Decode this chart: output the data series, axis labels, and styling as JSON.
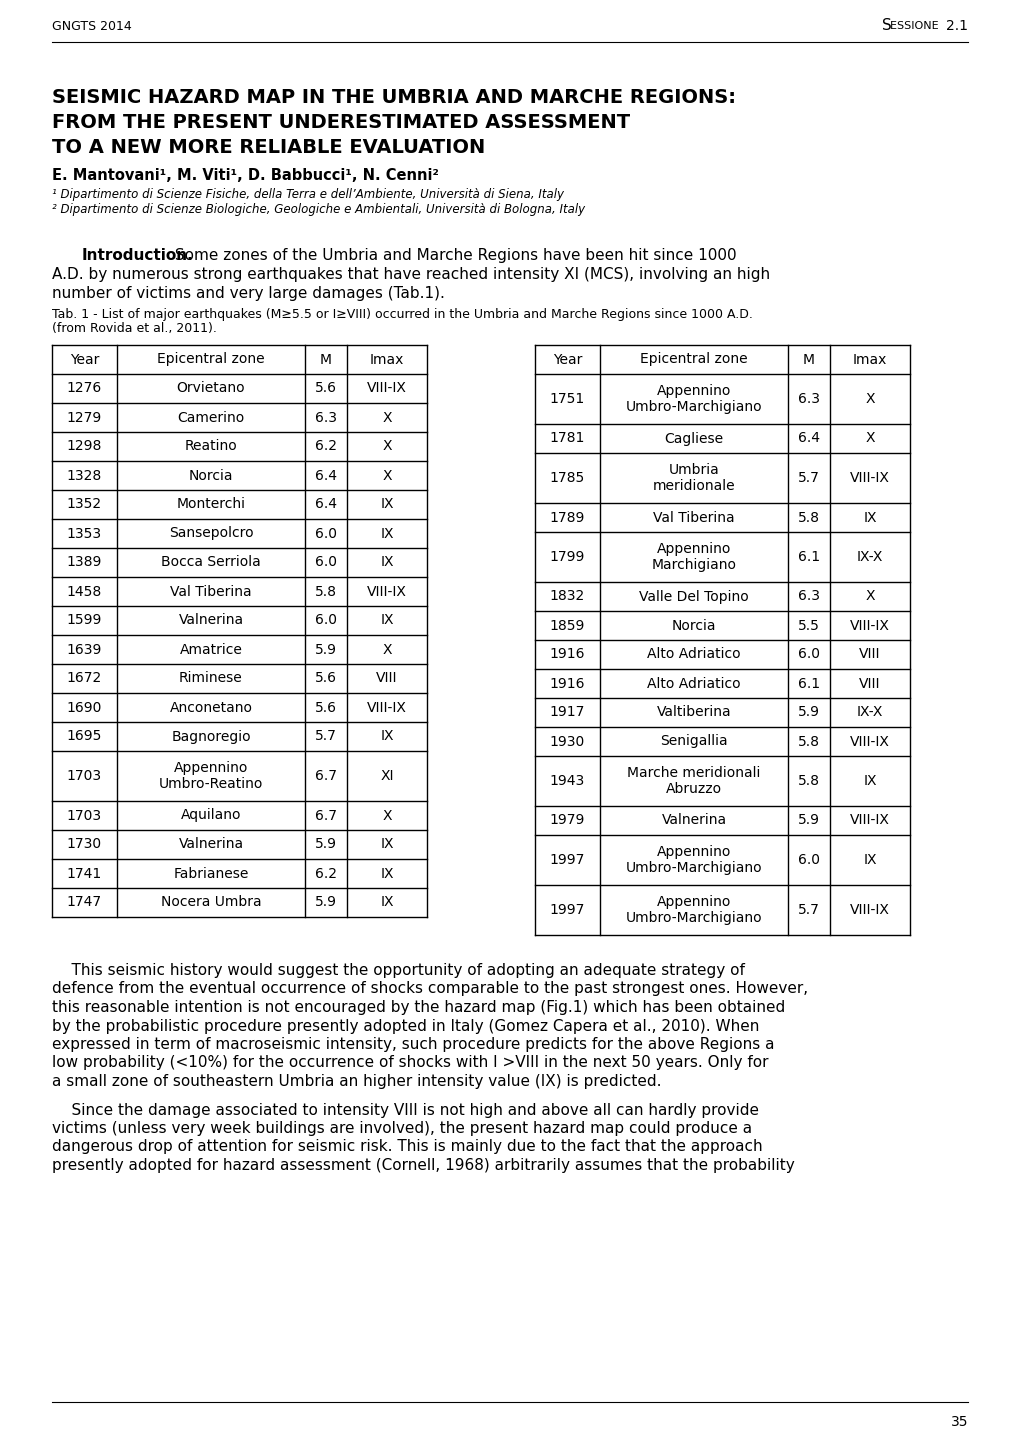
{
  "header_left": "GNGTS 2014",
  "header_right": "Sessione 2.1",
  "title_line1": "SEISMIC HAZARD MAP IN THE UMBRIA AND MARCHE REGIONS:",
  "title_line2": "FROM THE PRESENT UNDERESTIMATED ASSESSMENT",
  "title_line3": "TO A NEW MORE RELIABLE EVALUATION",
  "authors": "E. Mantovani¹, M. Viti¹, D. Babbucci¹, N. Cenni²",
  "affil1": "¹ Dipartimento di Scienze Fisiche, della Terra e dell’Ambiente, Università di Siena, Italy",
  "affil2": "² Dipartimento di Scienze Biologiche, Geologiche e Ambientali, Università di Bologna, Italy",
  "intro_bold": "Introduction.",
  "intro_text": " Some zones of the Umbria and Marche Regions have been hit since 1000 A.D. by numerous strong earthquakes that have reached intensity XI (MCS), involving an high number of victims and very large damages (Tab.1).",
  "tab_caption_line1": "Tab. 1 - List of major earthquakes (M≥5.5 or I≥VIII) occurred in the Umbria and Marche Regions since 1000 A.D.",
  "tab_caption_line2": "(from Rovida et al., 2011).",
  "table_left": [
    [
      "Year",
      "Epicentral zone",
      "M",
      "Imax"
    ],
    [
      "1276",
      "Orvietano",
      "5.6",
      "VIII-IX"
    ],
    [
      "1279",
      "Camerino",
      "6.3",
      "X"
    ],
    [
      "1298",
      "Reatino",
      "6.2",
      "X"
    ],
    [
      "1328",
      "Norcia",
      "6.4",
      "X"
    ],
    [
      "1352",
      "Monterchi",
      "6.4",
      "IX"
    ],
    [
      "1353",
      "Sansepolcro",
      "6.0",
      "IX"
    ],
    [
      "1389",
      "Bocca Serriola",
      "6.0",
      "IX"
    ],
    [
      "1458",
      "Val Tiberina",
      "5.8",
      "VIII-IX"
    ],
    [
      "1599",
      "Valnerina",
      "6.0",
      "IX"
    ],
    [
      "1639",
      "Amatrice",
      "5.9",
      "X"
    ],
    [
      "1672",
      "Riminese",
      "5.6",
      "VIII"
    ],
    [
      "1690",
      "Anconetano",
      "5.6",
      "VIII-IX"
    ],
    [
      "1695",
      "Bagnoregio",
      "5.7",
      "IX"
    ],
    [
      "1703",
      "Appennino\nUmbro-Reatino",
      "6.7",
      "XI"
    ],
    [
      "1703",
      "Aquilano",
      "6.7",
      "X"
    ],
    [
      "1730",
      "Valnerina",
      "5.9",
      "IX"
    ],
    [
      "1741",
      "Fabrianese",
      "6.2",
      "IX"
    ],
    [
      "1747",
      "Nocera Umbra",
      "5.9",
      "IX"
    ]
  ],
  "table_right": [
    [
      "Year",
      "Epicentral zone",
      "M",
      "Imax"
    ],
    [
      "1751",
      "Appennino\nUmbro-Marchigiano",
      "6.3",
      "X"
    ],
    [
      "1781",
      "Cagliese",
      "6.4",
      "X"
    ],
    [
      "1785",
      "Umbria\nmeridionale",
      "5.7",
      "VIII-IX"
    ],
    [
      "1789",
      "Val Tiberina",
      "5.8",
      "IX"
    ],
    [
      "1799",
      "Appennino\nMarchigiano",
      "6.1",
      "IX-X"
    ],
    [
      "1832",
      "Valle Del Topino",
      "6.3",
      "X"
    ],
    [
      "1859",
      "Norcia",
      "5.5",
      "VIII-IX"
    ],
    [
      "1916",
      "Alto Adriatico",
      "6.0",
      "VIII"
    ],
    [
      "1916",
      "Alto Adriatico",
      "6.1",
      "VIII"
    ],
    [
      "1917",
      "Valtiberina",
      "5.9",
      "IX-X"
    ],
    [
      "1930",
      "Senigallia",
      "5.8",
      "VIII-IX"
    ],
    [
      "1943",
      "Marche meridionali\nAbruzzo",
      "5.8",
      "IX"
    ],
    [
      "1979",
      "Valnerina",
      "5.9",
      "VIII-IX"
    ],
    [
      "1997",
      "Appennino\nUmbro-Marchigiano",
      "6.0",
      "IX"
    ],
    [
      "1997",
      "Appennino\nUmbro-Marchigiano",
      "5.7",
      "VIII-IX"
    ]
  ],
  "body_lines1": [
    "    This seismic history would suggest the opportunity of adopting an adequate strategy of",
    "defence from the eventual occurrence of shocks comparable to the past strongest ones. However,",
    "this reasonable intention is not encouraged by the hazard map (Fig.1) which has been obtained",
    "by the probabilistic procedure presently adopted in Italy (Gomez Capera et al., 2010). When",
    "expressed in term of macroseismic intensity, such procedure predicts for the above Regions a",
    "low probability (<10%) for the occurrence of shocks with I >VIII in the next 50 years. Only for",
    "a small zone of southeastern Umbria an higher intensity value (IX) is predicted."
  ],
  "body_lines2": [
    "    Since the damage associated to intensity VIII is not high and above all can hardly provide",
    "victims (unless very week buildings are involved), the present hazard map could produce a",
    "dangerous drop of attention for seismic risk. This is mainly due to the fact that the approach",
    "presently adopted for hazard assessment (Cornell, 1968) arbitrarily assumes that the probability"
  ],
  "page_number": "35"
}
